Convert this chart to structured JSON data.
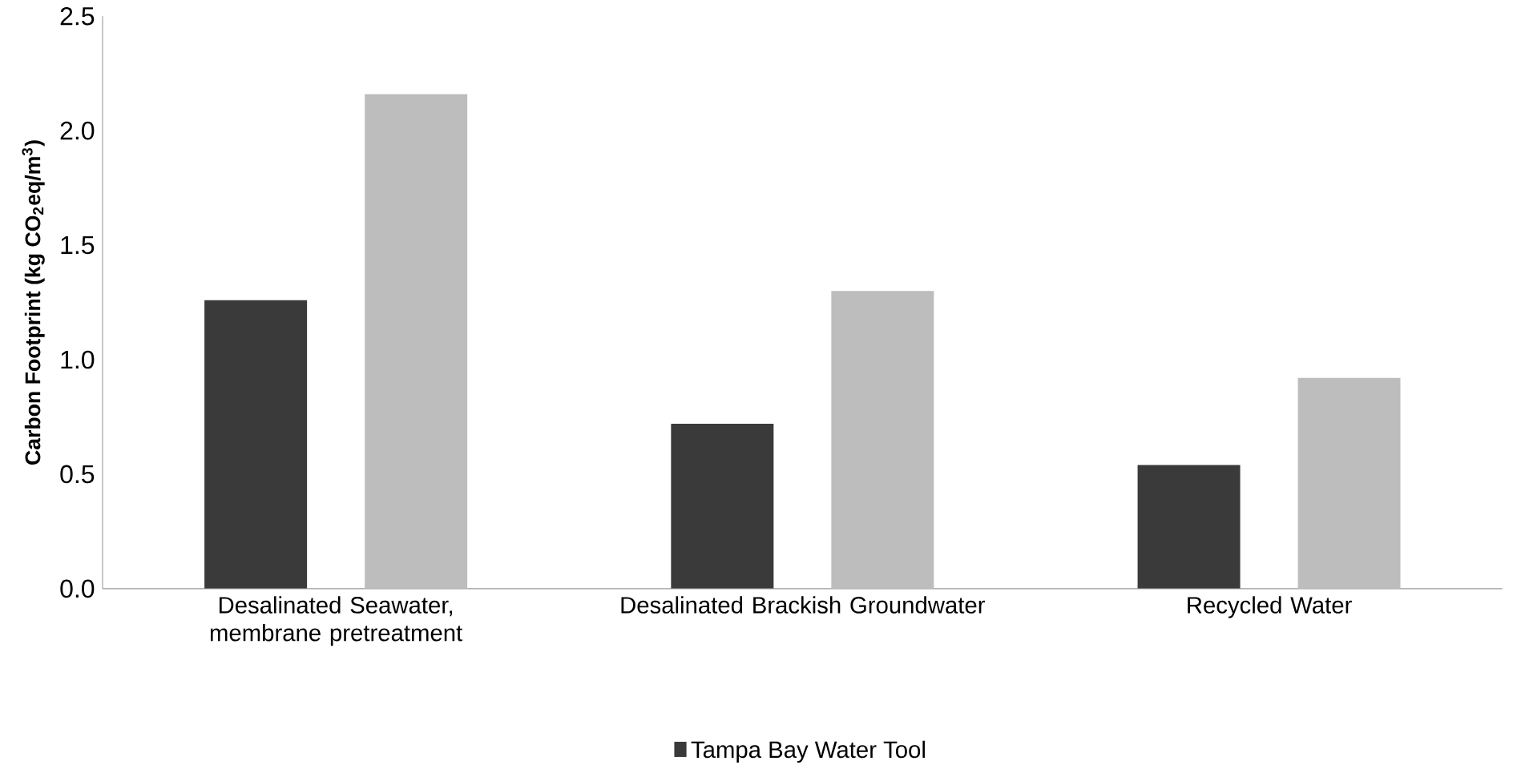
{
  "chart_data": {
    "type": "bar",
    "ylabel": "Carbon Footprint (kg CO$_{2}$eq/m$^{3}$)",
    "categories": [
      "Desalinated Seawater, membrane pretreatment",
      "Desalinated Brackish Groundwater",
      "Recycled Water"
    ],
    "series": [
      {
        "name": "Tampa Bay Water Tool",
        "color": "#3a3a3a",
        "values": [
          1.26,
          0.72,
          0.54
        ]
      },
      {
        "color": "#bdbdbd",
        "values": [
          2.16,
          1.3,
          0.92
        ]
      }
    ],
    "ylim": [
      0,
      2.5
    ],
    "yticks": [
      {
        "value": 0,
        "label": "0.0"
      },
      {
        "value": 0.5,
        "label": "0.5"
      },
      {
        "value": 1,
        "label": "1.0"
      },
      {
        "value": 1.5,
        "label": "1.5"
      },
      {
        "value": 2,
        "label": "2.0"
      },
      {
        "value": 2.5,
        "label": "2.5"
      }
    ],
    "grid": false,
    "legend": "bottom"
  }
}
